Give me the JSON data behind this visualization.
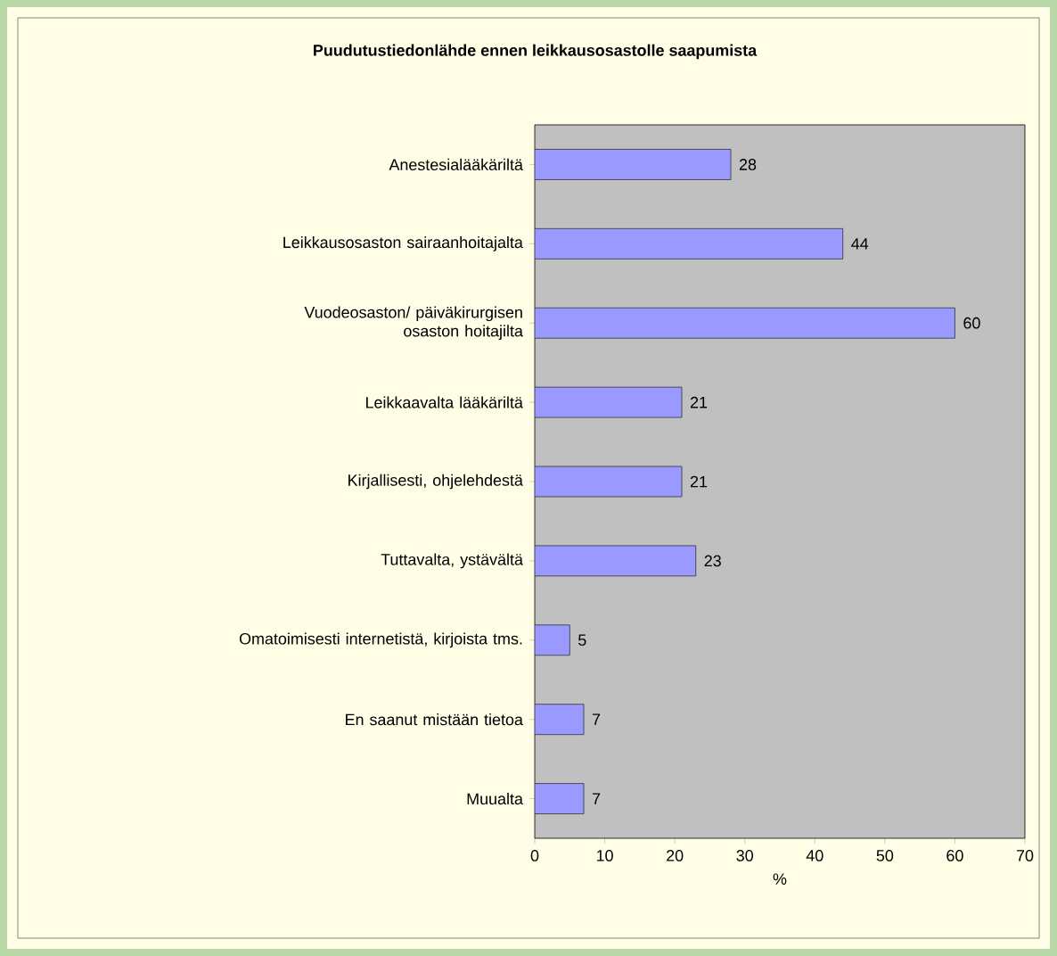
{
  "chart_data": {
    "type": "bar",
    "orientation": "horizontal",
    "title": "Puudutustiedonlähde ennen leikkausosastolle saapumista",
    "xlabel": "%",
    "categories": [
      "Anestesialääkäriltä",
      "Leikkausosaston sairaanhoitajalta",
      "Vuodeosaston/ päiväkirurgisen osaston hoitajilta",
      "Leikkaavalta lääkäriltä",
      "Kirjallisesti, ohjelehdestä",
      "Tuttavalta, ystävältä",
      "Omatoimisesti internetistä, kirjoista tms.",
      "En saanut mistään tietoa",
      "Muualta"
    ],
    "values": [
      28,
      44,
      60,
      21,
      21,
      23,
      5,
      7,
      7
    ],
    "color": "#9999ff",
    "xlim": [
      0,
      70
    ],
    "xticks": [
      0,
      10,
      20,
      30,
      40,
      50,
      60,
      70
    ],
    "data_labels": true
  }
}
